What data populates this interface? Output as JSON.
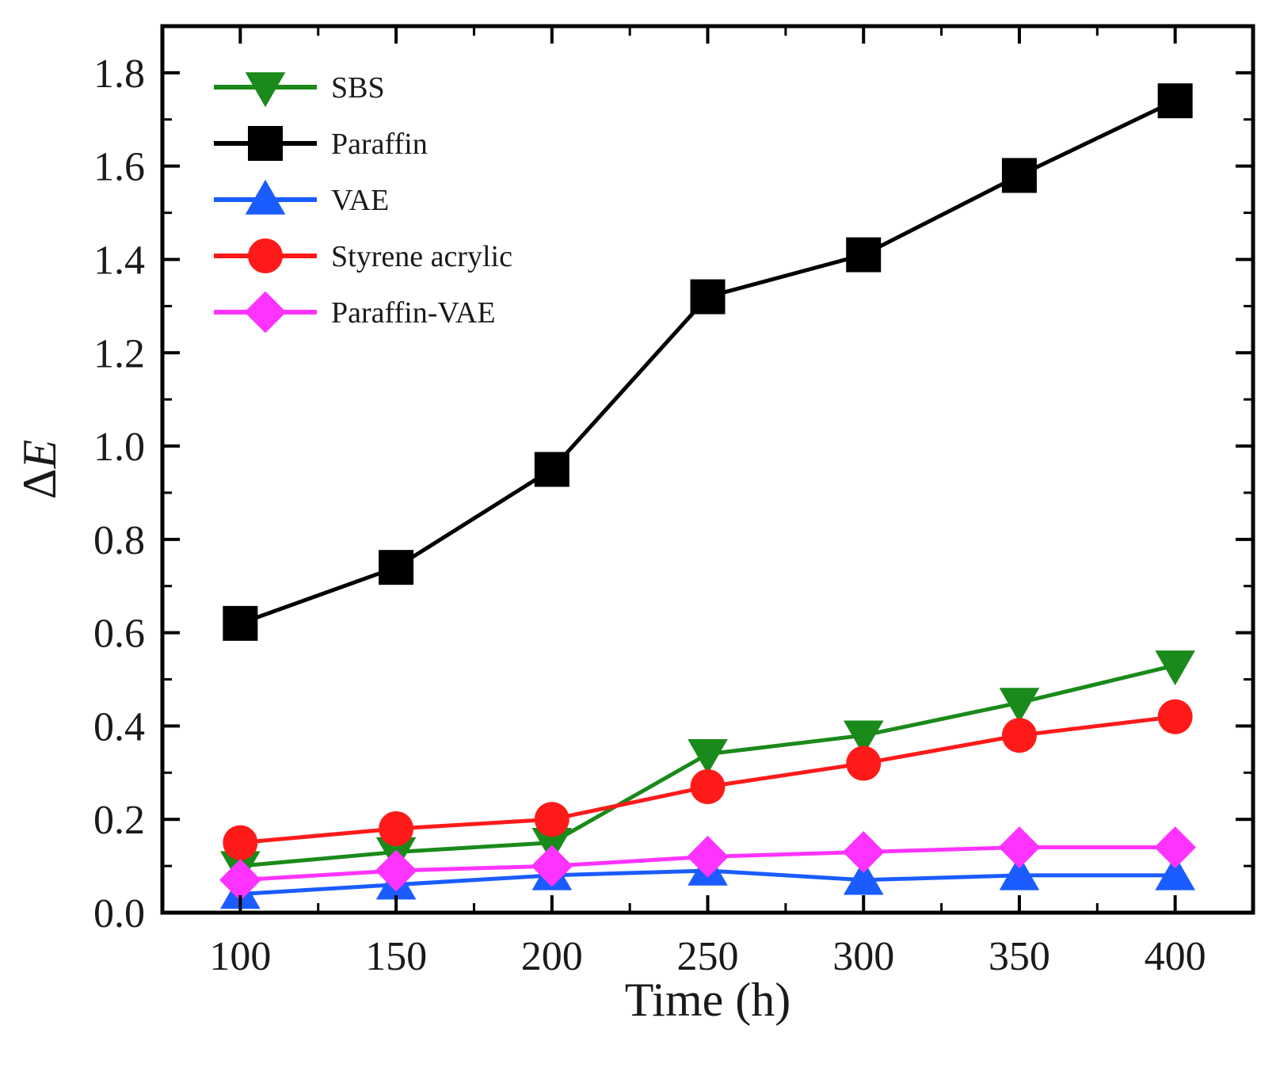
{
  "chart_data": {
    "type": "line",
    "title": "",
    "xlabel": "Time (h)",
    "ylabel_symbol": "Δ",
    "ylabel_var": "E",
    "x": [
      100,
      150,
      200,
      250,
      300,
      350,
      400
    ],
    "xlim": [
      75,
      425
    ],
    "ylim": [
      0,
      1.9
    ],
    "xticks": [
      100,
      150,
      200,
      250,
      300,
      350,
      400
    ],
    "xtick_labels": [
      "100",
      "150",
      "200",
      "250",
      "300",
      "350",
      "400"
    ],
    "yticks": [
      0.0,
      0.2,
      0.4,
      0.6,
      0.8,
      1.0,
      1.2,
      1.4,
      1.6,
      1.8
    ],
    "ytick_labels": [
      "0.0",
      "0.2",
      "0.4",
      "0.6",
      "0.8",
      "1.0",
      "1.2",
      "1.4",
      "1.6",
      "1.8"
    ],
    "grid": false,
    "legend_position": "top-left",
    "series": [
      {
        "name": "SBS",
        "color": "#1a8a1a",
        "marker": "triangle-down",
        "values": [
          0.1,
          0.13,
          0.15,
          0.34,
          0.38,
          0.45,
          0.53
        ]
      },
      {
        "name": "Paraffin",
        "color": "#000000",
        "marker": "square",
        "values": [
          0.62,
          0.74,
          0.95,
          1.32,
          1.41,
          1.58,
          1.74
        ]
      },
      {
        "name": "VAE",
        "color": "#1a5cff",
        "marker": "triangle-up",
        "values": [
          0.04,
          0.06,
          0.08,
          0.09,
          0.07,
          0.08,
          0.08
        ]
      },
      {
        "name": "Styrene acrylic",
        "color": "#ff1a1a",
        "marker": "circle",
        "values": [
          0.15,
          0.18,
          0.2,
          0.27,
          0.32,
          0.38,
          0.42
        ]
      },
      {
        "name": "Paraffin-VAE",
        "color": "#ff33ff",
        "marker": "diamond",
        "values": [
          0.07,
          0.09,
          0.1,
          0.12,
          0.13,
          0.14,
          0.14
        ]
      }
    ]
  }
}
